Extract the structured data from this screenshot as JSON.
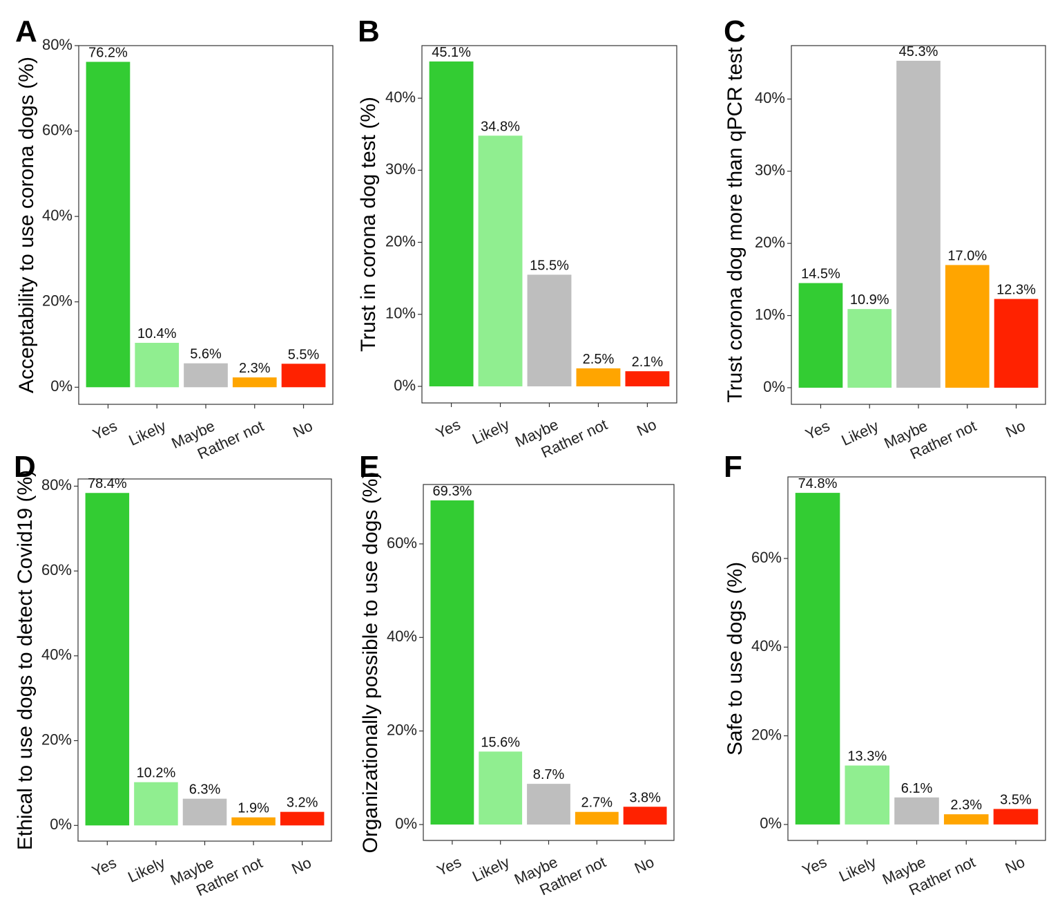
{
  "colors": {
    "Yes": "#33cc33",
    "Likely": "#90ee90",
    "Maybe": "#bebebe",
    "Rather not": "#ffa500",
    "No": "#ff2200"
  },
  "chart_data": [
    {
      "panel": "A",
      "type": "bar",
      "ylabel": "Acceptability to use corona dogs (%)",
      "categories": [
        "Yes",
        "Likely",
        "Maybe",
        "Rather not",
        "No"
      ],
      "values": [
        76.2,
        10.4,
        5.6,
        2.3,
        5.5
      ],
      "value_labels": [
        "76.2%",
        "10.4%",
        "5.6%",
        "2.3%",
        "5.5%"
      ],
      "yticks": [
        0,
        20,
        40,
        60,
        80
      ],
      "ytick_labels": [
        "0%",
        "20%",
        "40%",
        "60%",
        "80%"
      ],
      "ylim": [
        -4,
        80
      ]
    },
    {
      "panel": "B",
      "type": "bar",
      "ylabel": "Trust in corona dog test (%)",
      "categories": [
        "Yes",
        "Likely",
        "Maybe",
        "Rather not",
        "No"
      ],
      "values": [
        45.1,
        34.8,
        15.5,
        2.5,
        2.1
      ],
      "value_labels": [
        "45.1%",
        "34.8%",
        "15.5%",
        "2.5%",
        "2.1%"
      ],
      "yticks": [
        0,
        10,
        20,
        30,
        40
      ],
      "ytick_labels": [
        "0%",
        "10%",
        "20%",
        "30%",
        "40%"
      ],
      "ylim": [
        -2.3,
        47.3
      ]
    },
    {
      "panel": "C",
      "type": "bar",
      "ylabel": "Trust corona dog more than qPCR test",
      "categories": [
        "Yes",
        "Likely",
        "Maybe",
        "Rather not",
        "No"
      ],
      "values": [
        14.5,
        10.9,
        45.3,
        17.0,
        12.3
      ],
      "value_labels": [
        "14.5%",
        "10.9%",
        "45.3%",
        "17.0%",
        "12.3%"
      ],
      "yticks": [
        0,
        10,
        20,
        30,
        40
      ],
      "ytick_labels": [
        "0%",
        "10%",
        "20%",
        "30%",
        "40%"
      ],
      "ylim": [
        -2.3,
        47.4
      ]
    },
    {
      "panel": "D",
      "type": "bar",
      "ylabel": "Ethical to use dogs to detect Covid19 (%)",
      "categories": [
        "Yes",
        "Likely",
        "Maybe",
        "Rather not",
        "No"
      ],
      "values": [
        78.4,
        10.2,
        6.3,
        1.9,
        3.2
      ],
      "value_labels": [
        "78.4%",
        "10.2%",
        "6.3%",
        "1.9%",
        "3.2%"
      ],
      "yticks": [
        0,
        20,
        40,
        60,
        80
      ],
      "ytick_labels": [
        "0%",
        "20%",
        "40%",
        "60%",
        "80%"
      ],
      "ylim": [
        -3.7,
        81.7
      ]
    },
    {
      "panel": "E",
      "type": "bar",
      "ylabel": "Organizationally possible to use dogs (%)",
      "categories": [
        "Yes",
        "Likely",
        "Maybe",
        "Rather not",
        "No"
      ],
      "values": [
        69.3,
        15.6,
        8.7,
        2.7,
        3.8
      ],
      "value_labels": [
        "69.3%",
        "15.6%",
        "8.7%",
        "2.7%",
        "3.8%"
      ],
      "yticks": [
        0,
        20,
        40,
        60
      ],
      "ytick_labels": [
        "0%",
        "20%",
        "40%",
        "60%"
      ],
      "ylim": [
        -3.4,
        72.7
      ]
    },
    {
      "panel": "F",
      "type": "bar",
      "ylabel": "Safe to use dogs (%)",
      "categories": [
        "Yes",
        "Likely",
        "Maybe",
        "Rather not",
        "No"
      ],
      "values": [
        74.8,
        13.3,
        6.1,
        2.3,
        3.5
      ],
      "value_labels": [
        "74.8%",
        "13.3%",
        "6.1%",
        "2.3%",
        "3.5%"
      ],
      "yticks": [
        0,
        20,
        40,
        60
      ],
      "ytick_labels": [
        "0%",
        "20%",
        "40%",
        "60%"
      ],
      "ylim": [
        -3.6,
        78.4
      ]
    }
  ]
}
